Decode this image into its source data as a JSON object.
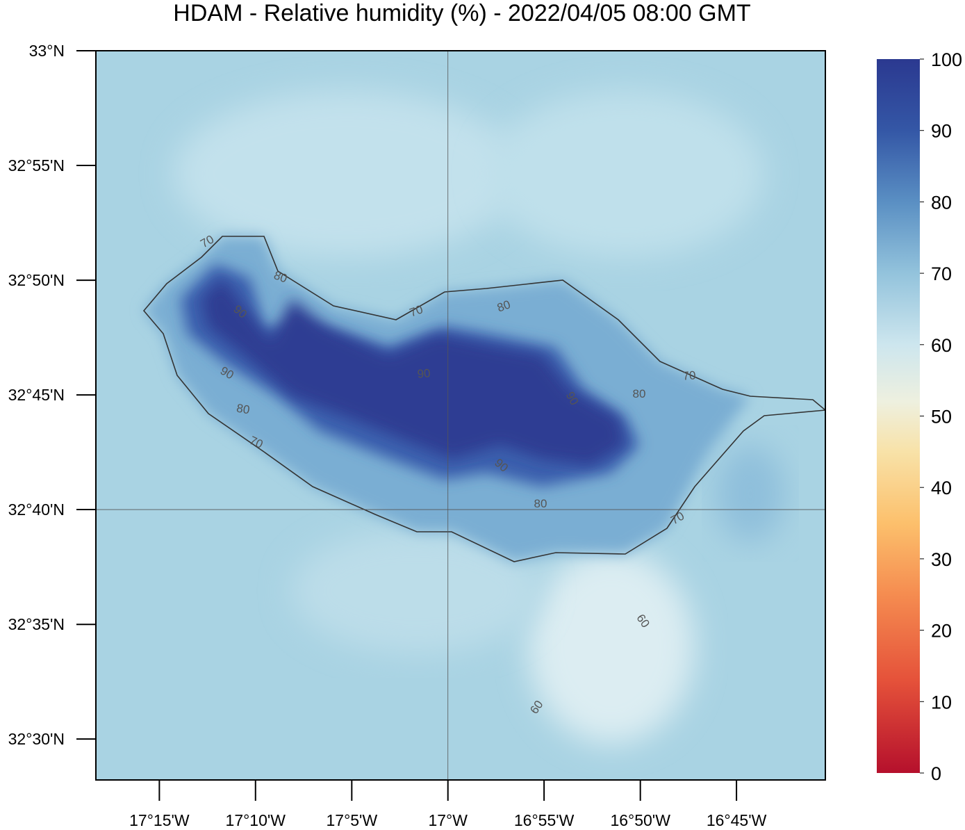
{
  "title": "HDAM - Relative humidity (%)  -  2022/04/05  08:00 GMT",
  "map": {
    "ylim": [
      32.4703,
      33
    ],
    "xlim": [
      -17.305,
      -16.673
    ],
    "yticks": [
      {
        "value": 33,
        "label": "33°N"
      },
      {
        "value": 32.9167,
        "label": "32°55'N"
      },
      {
        "value": 32.8333,
        "label": "32°50'N"
      },
      {
        "value": 32.75,
        "label": "32°45'N"
      },
      {
        "value": 32.6667,
        "label": "32°40'N"
      },
      {
        "value": 32.5833,
        "label": "32°35'N"
      },
      {
        "value": 32.5,
        "label": "32°30'N"
      }
    ],
    "xticks": [
      {
        "value": -17.25,
        "label": "17°15'W"
      },
      {
        "value": -17.1667,
        "label": "17°10'W"
      },
      {
        "value": -17.0833,
        "label": "17°5'W"
      },
      {
        "value": -17,
        "label": "17°W"
      },
      {
        "value": -16.9167,
        "label": "16°55'W"
      },
      {
        "value": -16.8333,
        "label": "16°50'W"
      },
      {
        "value": -16.75,
        "label": "16°45'W"
      }
    ],
    "contour_labels": [
      70,
      80,
      90,
      90,
      80,
      70,
      70,
      80,
      90,
      90,
      80,
      70,
      90,
      80,
      70,
      60,
      60
    ]
  },
  "colorbar": {
    "range": [
      0,
      100
    ],
    "ticks": [
      0,
      10,
      20,
      30,
      40,
      50,
      60,
      70,
      80,
      90,
      100
    ]
  }
}
